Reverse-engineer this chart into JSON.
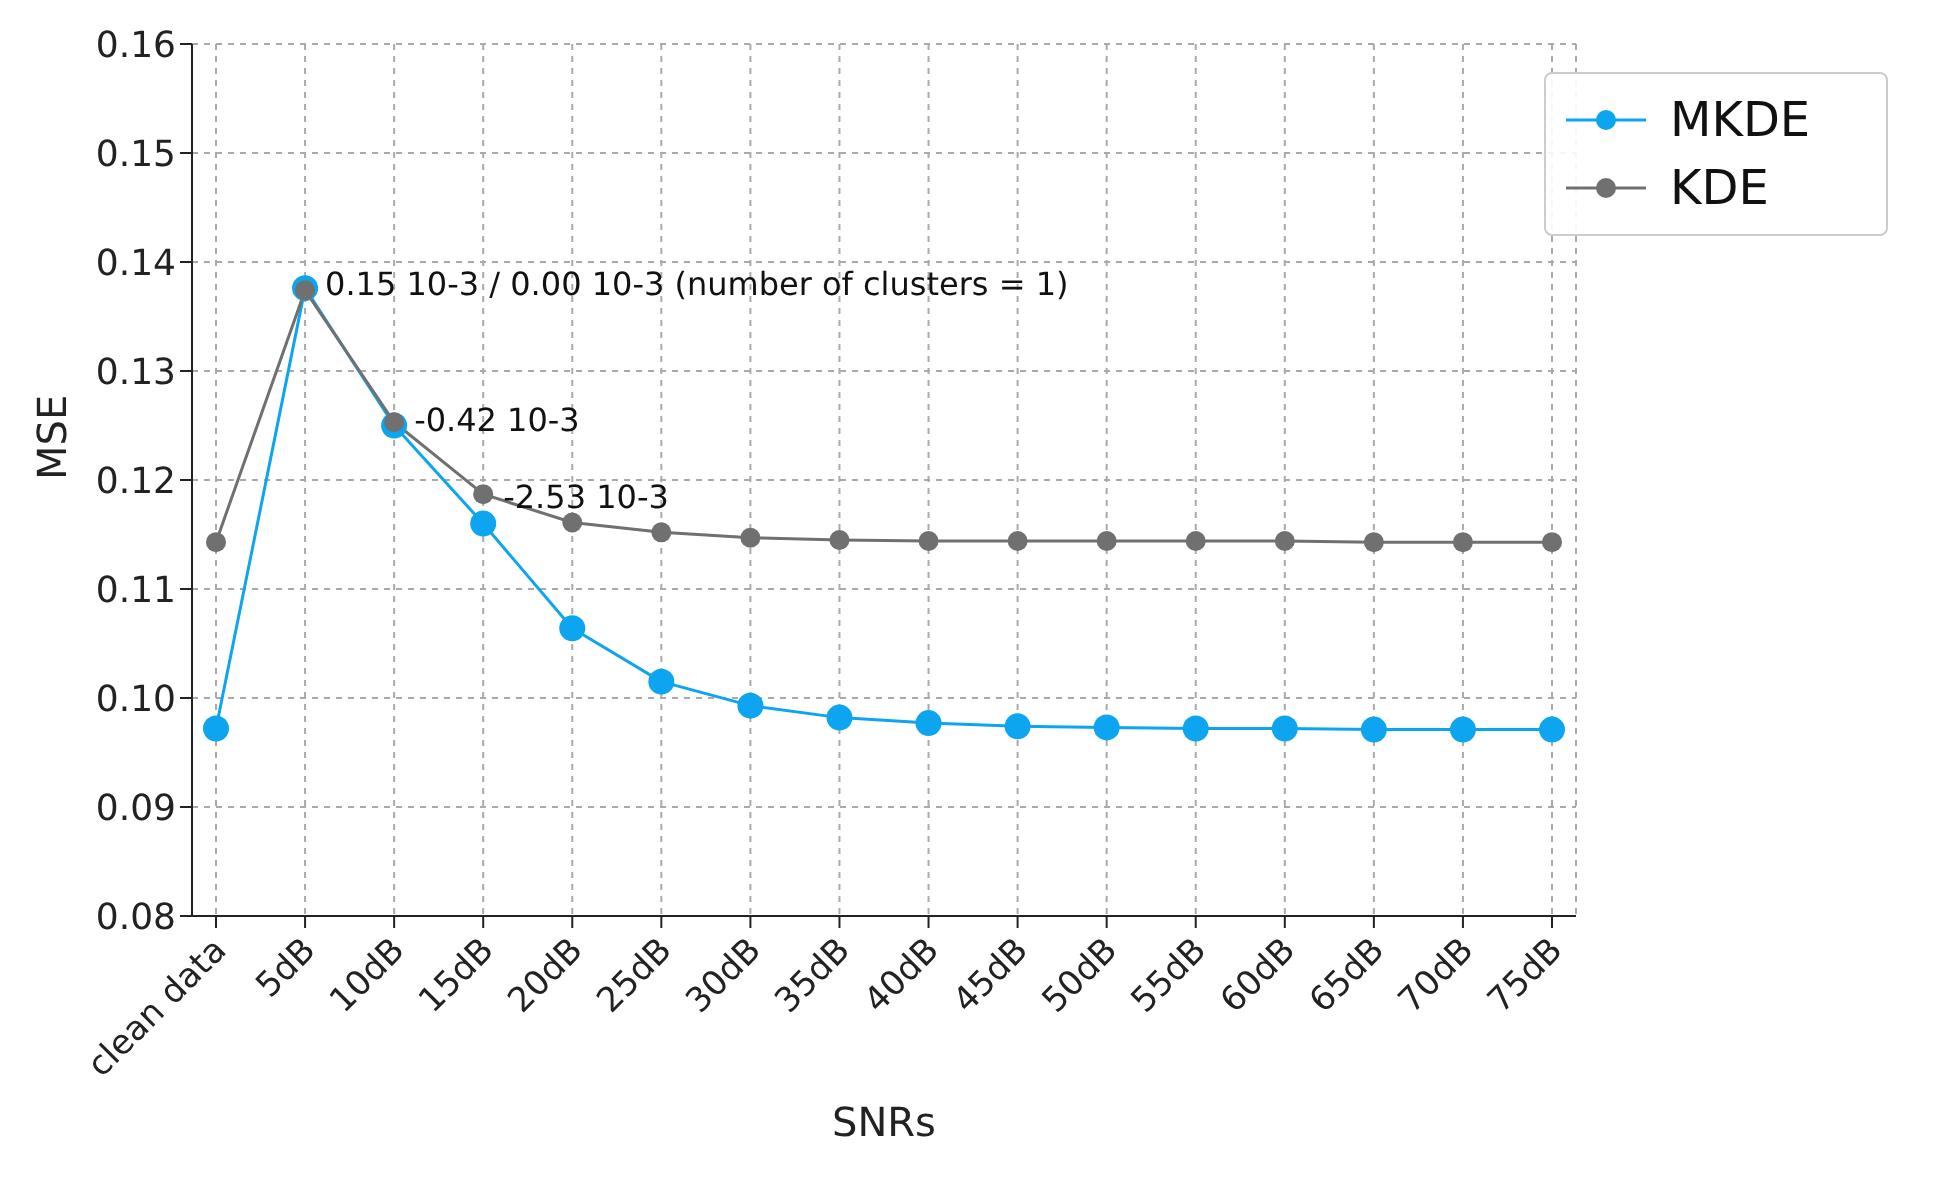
{
  "chart_data": {
    "type": "line",
    "xlabel": "SNRs",
    "ylabel": "MSE",
    "categories": [
      "clean data",
      "5dB",
      "10dB",
      "15dB",
      "20dB",
      "25dB",
      "30dB",
      "35dB",
      "40dB",
      "45dB",
      "50dB",
      "55dB",
      "60dB",
      "65dB",
      "70dB",
      "75dB"
    ],
    "series": [
      {
        "name": "MKDE",
        "color": "#0da5ef",
        "values": [
          0.0972,
          0.1376,
          0.125,
          0.116,
          0.1064,
          0.1015,
          0.0993,
          0.0982,
          0.0977,
          0.0974,
          0.0973,
          0.0972,
          0.0972,
          0.0971,
          0.0971,
          0.0971
        ]
      },
      {
        "name": "KDE",
        "color": "#707070",
        "values": [
          0.1143,
          0.1374,
          0.1253,
          0.1187,
          0.1161,
          0.1152,
          0.1147,
          0.1145,
          0.1144,
          0.1144,
          0.1144,
          0.1144,
          0.1144,
          0.1143,
          0.1143,
          0.1143
        ]
      }
    ],
    "ylim": [
      0.08,
      0.16
    ],
    "yticks": [
      {
        "value": 0.08,
        "label": "0.08"
      },
      {
        "value": 0.09,
        "label": "0.09"
      },
      {
        "value": 0.1,
        "label": "0.10"
      },
      {
        "value": 0.11,
        "label": "0.11"
      },
      {
        "value": 0.12,
        "label": "0.12"
      },
      {
        "value": 0.13,
        "label": "0.13"
      },
      {
        "value": 0.14,
        "label": "0.14"
      },
      {
        "value": 0.15,
        "label": "0.15"
      },
      {
        "value": 0.16,
        "label": "0.16"
      }
    ],
    "annotations": [
      {
        "text": "0.15 10-3 / 0.00 10-3 (number of clusters = 1)",
        "x": "5dB",
        "y": 0.138
      },
      {
        "text": "-0.42 10-3",
        "x": "10dB",
        "y": 0.1255
      },
      {
        "text": "-2.53 10-3",
        "x": "15dB",
        "y": 0.1185
      }
    ],
    "grid": true,
    "legend": "top right",
    "marker": "circle",
    "line_style": "solid"
  }
}
